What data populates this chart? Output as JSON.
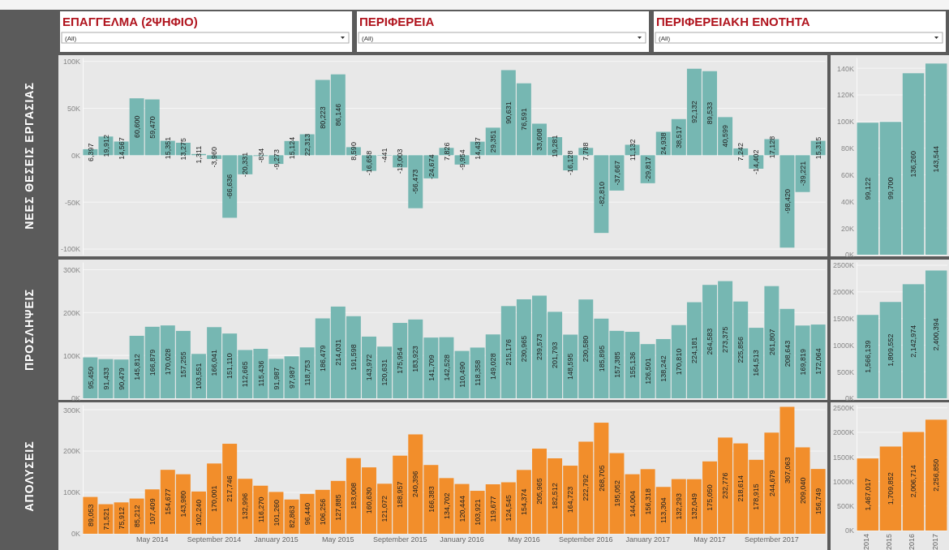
{
  "chart_data": [
    {
      "type": "other",
      "annotations": [
        "ΕΠΑΓΓΕΛΜΑ (2ΨΗΦΙΟ)",
        "(All)",
        "ΠΕΡΙΦΕΡΕΙΑ",
        "(All)",
        "ΠΕΡΙΦΕΡΕΙΑΚΗ ΕΝΟΤΗΤΑ",
        "(All)"
      ]
    },
    {
      "type": "bar",
      "ylabel": "ΝΕΕΣ ΘΕΣΕΙΣ ΕΡΓΑΣΙΑΣ",
      "tick_labels": "y",
      "grid": "y",
      "color": "#76b7b2",
      "value_labels": [
        "6,397",
        "19,912",
        "14,567",
        "60,600",
        "59,470",
        "15,351",
        "13,275",
        "1,311",
        "-3,960",
        "-66,636",
        "-20,331",
        "-834",
        "-9,273",
        "15,124",
        "22,313",
        "80,223",
        "86,146",
        "8,590",
        "-16,658",
        "-441",
        "-13,003",
        "-56,473",
        "-24,674",
        "7,826",
        "-9,954",
        "14,437",
        "29,351",
        "90,631",
        "76,591",
        "33,608",
        "19,281",
        "-16,128",
        "7,788",
        "-82,810",
        "-37,667",
        "11,132",
        "-29,817",
        "24,938",
        "38,517",
        "92,132",
        "89,533",
        "40,599",
        "7,242",
        "-14,402",
        "17,128",
        "-98,420",
        "-39,221",
        "15,315"
      ],
      "categories": [
        null,
        null,
        null,
        null,
        null,
        null,
        null,
        null,
        null,
        null,
        null,
        null,
        null,
        null,
        null,
        null,
        null,
        null,
        null,
        null,
        null,
        null,
        null,
        null,
        null,
        null,
        null,
        null,
        null,
        null,
        null,
        null,
        null,
        null,
        null,
        null,
        null,
        null,
        null,
        null,
        null,
        null,
        null,
        null,
        null,
        null,
        null,
        null
      ],
      "values": [
        6397,
        19912,
        14567,
        60600,
        59470,
        15351,
        13275,
        1311,
        -3960,
        -66636,
        -20331,
        -834,
        -9273,
        15124,
        22313,
        80223,
        86146,
        8590,
        -16658,
        -441,
        -13003,
        -56473,
        -24674,
        7826,
        -9954,
        14437,
        29351,
        90631,
        76591,
        33608,
        19281,
        -16128,
        7788,
        -82810,
        -37667,
        11132,
        -29817,
        24938,
        38517,
        92132,
        89533,
        40599,
        7242,
        -14402,
        17128,
        -98420,
        -39221,
        15315
      ],
      "ylim": [
        -106000,
        104000
      ],
      "yticks": [
        {
          "value": 100000,
          "label": "100K"
        },
        {
          "value": 50000,
          "label": "50K"
        },
        {
          "value": 0,
          "label": "0K"
        },
        {
          "value": -50000,
          "label": "-50K"
        },
        {
          "value": -100000,
          "label": "-100K"
        }
      ]
    },
    {
      "type": "bar",
      "tick_labels": "y",
      "grid": "y",
      "color": "#76b7b2",
      "categories": [
        null,
        null,
        null,
        null
      ],
      "values": [
        99122,
        99700,
        136260,
        143544
      ],
      "value_labels": [
        "99,122",
        "99,700",
        "136,260",
        "143,544"
      ],
      "ylim": [
        0,
        148000
      ],
      "yticks": [
        {
          "value": 0,
          "label": "0K"
        },
        {
          "value": 20000,
          "label": "20K"
        },
        {
          "value": 40000,
          "label": "40K"
        },
        {
          "value": 60000,
          "label": "60K"
        },
        {
          "value": 80000,
          "label": "80K"
        },
        {
          "value": 100000,
          "label": "100K"
        },
        {
          "value": 120000,
          "label": "120K"
        },
        {
          "value": 140000,
          "label": "140K"
        }
      ]
    },
    {
      "type": "bar",
      "ylabel": "ΠΡΟΣΛΗΨΕΙΣ",
      "tick_labels": "y",
      "grid": "y",
      "color": "#76b7b2",
      "value_labels": [
        "95,450",
        "91,433",
        "90,479",
        "145,812",
        "166,879",
        "170,028",
        "157,255",
        "103,551",
        "166,041",
        "151,110",
        "112,665",
        "115,436",
        "91,987",
        "97,987",
        "118,753",
        "186,479",
        "214,031",
        "191,598",
        "143,972",
        "120,631",
        "175,954",
        "183,923",
        "141,709",
        "142,528",
        "110,490",
        "118,358",
        "149,028",
        "215,176",
        "230,965",
        "239,573",
        "201,793",
        "148,595",
        "230,580",
        "185,895",
        "157,385",
        "155,136",
        "126,501",
        "138,242",
        "170,810",
        "224,181",
        "264,583",
        "273,375",
        "225,856",
        "164,513",
        "261,807",
        "208,643",
        "169,819",
        "172,064"
      ],
      "categories": [
        null,
        null,
        null,
        null,
        null,
        null,
        null,
        null,
        null,
        null,
        null,
        null,
        null,
        null,
        null,
        null,
        null,
        null,
        null,
        null,
        null,
        null,
        null,
        null,
        null,
        null,
        null,
        null,
        null,
        null,
        null,
        null,
        null,
        null,
        null,
        null,
        null,
        null,
        null,
        null,
        null,
        null,
        null,
        null,
        null,
        null,
        null,
        null
      ],
      "values": [
        95450,
        91433,
        90479,
        145812,
        166879,
        170028,
        157255,
        103551,
        166041,
        151110,
        112665,
        115436,
        91987,
        97987,
        118753,
        186479,
        214031,
        191598,
        143972,
        120631,
        175954,
        183923,
        141709,
        142528,
        110490,
        118358,
        149028,
        215176,
        230965,
        239573,
        201793,
        148595,
        230580,
        185895,
        157385,
        155136,
        126501,
        138242,
        170810,
        224181,
        264583,
        273375,
        225856,
        164513,
        261807,
        208643,
        169819,
        172064
      ],
      "ylim": [
        0,
        318000
      ],
      "yticks": [
        {
          "value": 0,
          "label": "0K"
        },
        {
          "value": 100000,
          "label": "100K"
        },
        {
          "value": 200000,
          "label": "200K"
        },
        {
          "value": 300000,
          "label": "300K"
        }
      ]
    },
    {
      "type": "bar",
      "tick_labels": "y",
      "grid": "y",
      "color": "#76b7b2",
      "categories": [
        null,
        null,
        null,
        null
      ],
      "values": [
        1566139,
        1809552,
        2142974,
        2400394
      ],
      "value_labels": [
        "1,566,139",
        "1,809,552",
        "2,142,974",
        "2,400,394"
      ],
      "ylim": [
        0,
        2560000
      ],
      "yticks": [
        {
          "value": 0,
          "label": "0K"
        },
        {
          "value": 500000,
          "label": "500K"
        },
        {
          "value": 1000000,
          "label": "1000K"
        },
        {
          "value": 1500000,
          "label": "1500K"
        },
        {
          "value": 2000000,
          "label": "2000K"
        },
        {
          "value": 2500000,
          "label": "2500K"
        }
      ]
    },
    {
      "type": "bar",
      "ylabel": "ΑΠΟΛΥΣΕΙΣ",
      "grid": "y",
      "color": "#f28e2b",
      "value_labels": [
        "89,053",
        "71,521",
        "75,912",
        "85,212",
        "107,409",
        "154,677",
        "143,980",
        "102,240",
        "170,001",
        "217,746",
        "132,996",
        "116,270",
        "101,260",
        "82,863",
        "96,440",
        "106,256",
        "127,885",
        "183,008",
        "160,630",
        "121,072",
        "188,957",
        "240,396",
        "166,383",
        "134,702",
        "120,444",
        "103,921",
        "119,677",
        "124,545",
        "154,374",
        "205,965",
        "182,512",
        "164,723",
        "222,792",
        "268,705",
        "195,052",
        "144,004",
        "156,318",
        "113,304",
        "132,293",
        "132,049",
        "175,050",
        "232,776",
        "218,614",
        "178,915",
        "244,679",
        "307,063",
        "209,040",
        "156,749"
      ],
      "categories": [
        null,
        null,
        null,
        null,
        "May 2014",
        null,
        null,
        null,
        "September 2014",
        null,
        null,
        null,
        "January 2015",
        null,
        null,
        null,
        "May 2015",
        null,
        null,
        null,
        "September 2015",
        null,
        null,
        null,
        "January 2016",
        null,
        null,
        null,
        "May 2016",
        null,
        null,
        null,
        "September 2016",
        null,
        null,
        null,
        "January 2017",
        null,
        null,
        null,
        "May 2017",
        null,
        null,
        null,
        "September 2017",
        null,
        null,
        null
      ],
      "values": [
        89053,
        71521,
        75912,
        85212,
        107409,
        154677,
        143980,
        102240,
        170001,
        217746,
        132996,
        116270,
        101260,
        82863,
        96440,
        106256,
        127885,
        183008,
        160630,
        121072,
        188957,
        240396,
        166383,
        134702,
        120444,
        103921,
        119677,
        124545,
        154374,
        205965,
        182512,
        164723,
        222792,
        268705,
        195052,
        144004,
        156318,
        113304,
        132293,
        132049,
        175050,
        232776,
        218614,
        178915,
        244679,
        307063,
        209040,
        156749
      ],
      "ylim": [
        0,
        312000
      ],
      "yticks": [
        {
          "value": 0,
          "label": "0K"
        },
        {
          "value": 100000,
          "label": "100K"
        },
        {
          "value": 200000,
          "label": "200K"
        },
        {
          "value": 300000,
          "label": "300K"
        }
      ]
    },
    {
      "type": "bar",
      "grid": "y",
      "color": "#f28e2b",
      "categories": [
        "2014",
        "2015",
        "2016",
        "2017"
      ],
      "values": [
        1467017,
        1709852,
        2006714,
        2256850
      ],
      "value_labels": [
        "1,467,017",
        "1,709,852",
        "2,006,714",
        "2,256,850"
      ],
      "ylim": [
        0,
        2560000
      ],
      "yticks": [
        {
          "value": 0,
          "label": "0K"
        },
        {
          "value": 500000,
          "label": "500K"
        },
        {
          "value": 1000000,
          "label": "1000K"
        },
        {
          "value": 1500000,
          "label": "1500K"
        },
        {
          "value": 2000000,
          "label": "2000K"
        },
        {
          "value": 2500000,
          "label": "2500K"
        }
      ]
    }
  ]
}
